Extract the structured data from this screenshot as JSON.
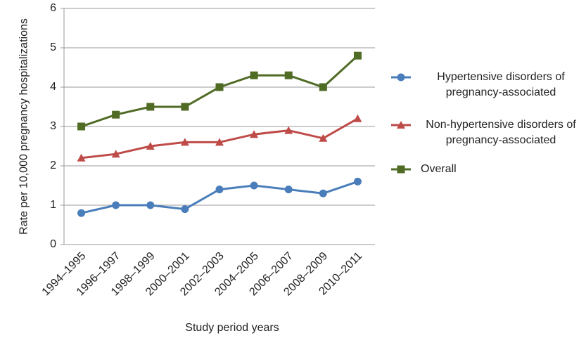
{
  "chart_data": {
    "type": "line",
    "y_label": "Rate per 10,000 pregnancy hospitalizations",
    "x_label": "Study period years",
    "categories": [
      "1994–1995",
      "1996–1997",
      "1998–1999",
      "2000–2001",
      "2002–2003",
      "2004–2005",
      "2006–2007",
      "2008–2009",
      "2010–2011"
    ],
    "series": [
      {
        "name": "Hypertensive disorders of pregnancy-associated",
        "color": "#4a7ebb",
        "marker": "circle",
        "values": [
          0.8,
          1.0,
          1.0,
          0.9,
          1.4,
          1.5,
          1.4,
          1.3,
          1.6
        ]
      },
      {
        "name": "Non-hypertensive disorders of pregnancy-associated",
        "color": "#be4b48",
        "marker": "triangle",
        "values": [
          2.2,
          2.3,
          2.5,
          2.6,
          2.6,
          2.8,
          2.9,
          2.7,
          3.2
        ]
      },
      {
        "name": "Overall",
        "color": "#4f6b24",
        "marker": "square",
        "values": [
          3.0,
          3.3,
          3.5,
          3.5,
          4.0,
          4.3,
          4.3,
          4.0,
          4.8
        ]
      }
    ],
    "ylim": [
      0,
      6
    ],
    "yticks": [
      0,
      1,
      2,
      3,
      4,
      5,
      6
    ],
    "grid": true,
    "legend": "right"
  }
}
